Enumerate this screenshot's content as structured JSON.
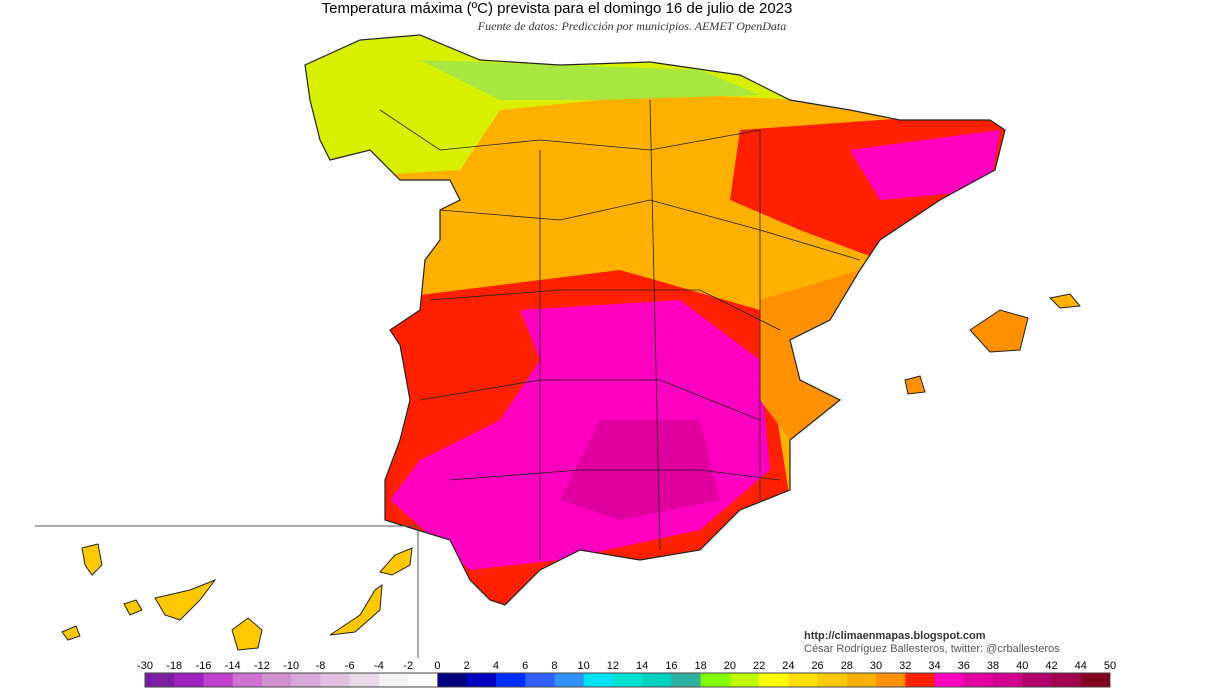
{
  "header": {
    "title": "Temperatura máxima (ºC) prevista para el domingo 16 de julio de 2023",
    "subtitle": "Fuente de datos: Predicción por municipios. AEMET OpenData"
  },
  "credits": {
    "url": "http://climaenmapas.blogspot.com",
    "author": "César Rodríguez Ballesteros, twitter: @crballesteros"
  },
  "legend": {
    "labels": [
      -30,
      -18,
      -16,
      -14,
      -12,
      -10,
      -8,
      -6,
      -4,
      -2,
      0,
      2,
      4,
      6,
      8,
      10,
      12,
      14,
      16,
      18,
      20,
      22,
      24,
      26,
      28,
      30,
      32,
      34,
      36,
      38,
      40,
      42,
      44,
      50
    ],
    "colors": [
      "#7b1fa2",
      "#a020c0",
      "#c040d0",
      "#d070d0",
      "#d090d0",
      "#d8a8d8",
      "#e0c0e0",
      "#e8d8e8",
      "#f0f0f0",
      "#ffffff",
      "#000080",
      "#0000c0",
      "#0030ff",
      "#3060ff",
      "#3090ff",
      "#00e0ff",
      "#00e0d0",
      "#00d0c0",
      "#30b0a0",
      "#80ff00",
      "#c0ff00",
      "#ffff00",
      "#ffe000",
      "#ffc800",
      "#ffb000",
      "#ff9000",
      "#ff2000",
      "#ff00c0",
      "#e000a0",
      "#d00090",
      "#b00070",
      "#a00050",
      "#800020"
    ]
  }
}
